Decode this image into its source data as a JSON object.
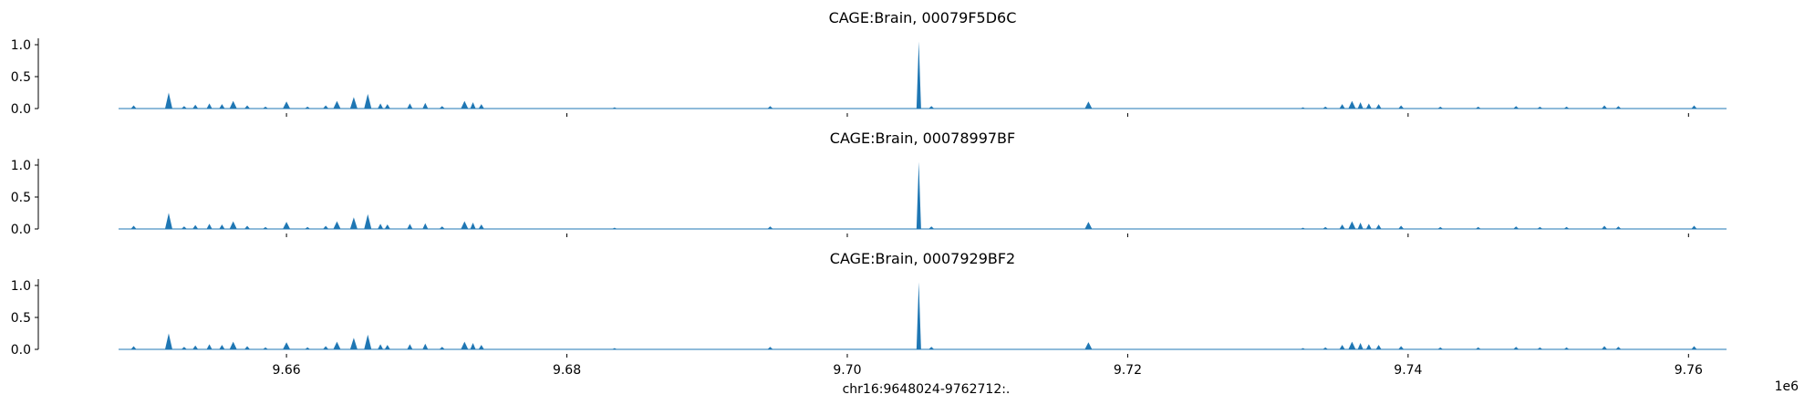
{
  "chart_data": [
    {
      "type": "area",
      "title": "CAGE:Brain, 00079F5D6C",
      "xlabel": "",
      "ylabel": "",
      "ylim": [
        0,
        1.1
      ],
      "yticks": [
        "0.0",
        "0.5",
        "1.0"
      ],
      "xlim": [
        9648024,
        9762712
      ],
      "xticks": [
        9660000,
        9680000,
        9700000,
        9720000,
        9740000,
        9760000
      ],
      "xtick_labels": [],
      "color": "#1f77b4",
      "peaks": [
        {
          "x": 9649100,
          "y": 0.05
        },
        {
          "x": 9651600,
          "y": 0.25
        },
        {
          "x": 9652700,
          "y": 0.04
        },
        {
          "x": 9653500,
          "y": 0.06
        },
        {
          "x": 9654500,
          "y": 0.08
        },
        {
          "x": 9655400,
          "y": 0.07
        },
        {
          "x": 9656200,
          "y": 0.12
        },
        {
          "x": 9657200,
          "y": 0.05
        },
        {
          "x": 9658500,
          "y": 0.03
        },
        {
          "x": 9660000,
          "y": 0.11
        },
        {
          "x": 9661500,
          "y": 0.03
        },
        {
          "x": 9662800,
          "y": 0.05
        },
        {
          "x": 9663600,
          "y": 0.12
        },
        {
          "x": 9664800,
          "y": 0.18
        },
        {
          "x": 9665800,
          "y": 0.23
        },
        {
          "x": 9666700,
          "y": 0.08
        },
        {
          "x": 9667200,
          "y": 0.07
        },
        {
          "x": 9668800,
          "y": 0.08
        },
        {
          "x": 9669900,
          "y": 0.09
        },
        {
          "x": 9671100,
          "y": 0.04
        },
        {
          "x": 9672700,
          "y": 0.12
        },
        {
          "x": 9673300,
          "y": 0.1
        },
        {
          "x": 9673900,
          "y": 0.07
        },
        {
          "x": 9683400,
          "y": 0.02
        },
        {
          "x": 9694500,
          "y": 0.04
        },
        {
          "x": 9705100,
          "y": 1.05
        },
        {
          "x": 9706000,
          "y": 0.04
        },
        {
          "x": 9717200,
          "y": 0.11
        },
        {
          "x": 9732500,
          "y": 0.02
        },
        {
          "x": 9734100,
          "y": 0.03
        },
        {
          "x": 9735300,
          "y": 0.07
        },
        {
          "x": 9736000,
          "y": 0.12
        },
        {
          "x": 9736600,
          "y": 0.1
        },
        {
          "x": 9737200,
          "y": 0.08
        },
        {
          "x": 9737900,
          "y": 0.07
        },
        {
          "x": 9739500,
          "y": 0.05
        },
        {
          "x": 9742300,
          "y": 0.03
        },
        {
          "x": 9745000,
          "y": 0.03
        },
        {
          "x": 9747700,
          "y": 0.04
        },
        {
          "x": 9749400,
          "y": 0.03
        },
        {
          "x": 9751300,
          "y": 0.03
        },
        {
          "x": 9754000,
          "y": 0.05
        },
        {
          "x": 9755000,
          "y": 0.04
        },
        {
          "x": 9760400,
          "y": 0.05
        }
      ]
    },
    {
      "type": "area",
      "title": "CAGE:Brain, 00078997BF",
      "xlabel": "",
      "ylabel": "",
      "ylim": [
        0,
        1.1
      ],
      "yticks": [
        "0.0",
        "0.5",
        "1.0"
      ],
      "xlim": [
        9648024,
        9762712
      ],
      "xticks": [
        9660000,
        9680000,
        9700000,
        9720000,
        9740000,
        9760000
      ],
      "xtick_labels": [],
      "color": "#1f77b4",
      "peaks": [
        {
          "x": 9649100,
          "y": 0.05
        },
        {
          "x": 9651600,
          "y": 0.25
        },
        {
          "x": 9652700,
          "y": 0.04
        },
        {
          "x": 9653500,
          "y": 0.06
        },
        {
          "x": 9654500,
          "y": 0.08
        },
        {
          "x": 9655400,
          "y": 0.07
        },
        {
          "x": 9656200,
          "y": 0.12
        },
        {
          "x": 9657200,
          "y": 0.05
        },
        {
          "x": 9658500,
          "y": 0.03
        },
        {
          "x": 9660000,
          "y": 0.11
        },
        {
          "x": 9661500,
          "y": 0.03
        },
        {
          "x": 9662800,
          "y": 0.05
        },
        {
          "x": 9663600,
          "y": 0.12
        },
        {
          "x": 9664800,
          "y": 0.18
        },
        {
          "x": 9665800,
          "y": 0.23
        },
        {
          "x": 9666700,
          "y": 0.08
        },
        {
          "x": 9667200,
          "y": 0.07
        },
        {
          "x": 9668800,
          "y": 0.08
        },
        {
          "x": 9669900,
          "y": 0.09
        },
        {
          "x": 9671100,
          "y": 0.04
        },
        {
          "x": 9672700,
          "y": 0.12
        },
        {
          "x": 9673300,
          "y": 0.1
        },
        {
          "x": 9673900,
          "y": 0.07
        },
        {
          "x": 9683400,
          "y": 0.02
        },
        {
          "x": 9694500,
          "y": 0.04
        },
        {
          "x": 9705100,
          "y": 1.05
        },
        {
          "x": 9706000,
          "y": 0.04
        },
        {
          "x": 9717200,
          "y": 0.11
        },
        {
          "x": 9732500,
          "y": 0.02
        },
        {
          "x": 9734100,
          "y": 0.03
        },
        {
          "x": 9735300,
          "y": 0.07
        },
        {
          "x": 9736000,
          "y": 0.12
        },
        {
          "x": 9736600,
          "y": 0.1
        },
        {
          "x": 9737200,
          "y": 0.08
        },
        {
          "x": 9737900,
          "y": 0.07
        },
        {
          "x": 9739500,
          "y": 0.05
        },
        {
          "x": 9742300,
          "y": 0.03
        },
        {
          "x": 9745000,
          "y": 0.03
        },
        {
          "x": 9747700,
          "y": 0.04
        },
        {
          "x": 9749400,
          "y": 0.03
        },
        {
          "x": 9751300,
          "y": 0.03
        },
        {
          "x": 9754000,
          "y": 0.05
        },
        {
          "x": 9755000,
          "y": 0.04
        },
        {
          "x": 9760400,
          "y": 0.05
        }
      ]
    },
    {
      "type": "area",
      "title": "CAGE:Brain, 0007929BF2",
      "xlabel": "chr16:9648024-9762712:.",
      "ylabel": "",
      "ylim": [
        0,
        1.1
      ],
      "yticks": [
        "0.0",
        "0.5",
        "1.0"
      ],
      "xlim": [
        9648024,
        9762712
      ],
      "xticks": [
        9660000,
        9680000,
        9700000,
        9720000,
        9740000,
        9760000
      ],
      "xtick_labels": [
        "9.66",
        "9.68",
        "9.70",
        "9.72",
        "9.74",
        "9.76"
      ],
      "x_offset_text": "1e6",
      "color": "#1f77b4",
      "peaks": [
        {
          "x": 9649100,
          "y": 0.05
        },
        {
          "x": 9651600,
          "y": 0.25
        },
        {
          "x": 9652700,
          "y": 0.04
        },
        {
          "x": 9653500,
          "y": 0.06
        },
        {
          "x": 9654500,
          "y": 0.08
        },
        {
          "x": 9655400,
          "y": 0.07
        },
        {
          "x": 9656200,
          "y": 0.12
        },
        {
          "x": 9657200,
          "y": 0.05
        },
        {
          "x": 9658500,
          "y": 0.03
        },
        {
          "x": 9660000,
          "y": 0.11
        },
        {
          "x": 9661500,
          "y": 0.03
        },
        {
          "x": 9662800,
          "y": 0.05
        },
        {
          "x": 9663600,
          "y": 0.12
        },
        {
          "x": 9664800,
          "y": 0.18
        },
        {
          "x": 9665800,
          "y": 0.23
        },
        {
          "x": 9666700,
          "y": 0.08
        },
        {
          "x": 9667200,
          "y": 0.07
        },
        {
          "x": 9668800,
          "y": 0.08
        },
        {
          "x": 9669900,
          "y": 0.09
        },
        {
          "x": 9671100,
          "y": 0.04
        },
        {
          "x": 9672700,
          "y": 0.12
        },
        {
          "x": 9673300,
          "y": 0.1
        },
        {
          "x": 9673900,
          "y": 0.07
        },
        {
          "x": 9683400,
          "y": 0.02
        },
        {
          "x": 9694500,
          "y": 0.04
        },
        {
          "x": 9705100,
          "y": 1.05
        },
        {
          "x": 9706000,
          "y": 0.04
        },
        {
          "x": 9717200,
          "y": 0.11
        },
        {
          "x": 9732500,
          "y": 0.02
        },
        {
          "x": 9734100,
          "y": 0.03
        },
        {
          "x": 9735300,
          "y": 0.07
        },
        {
          "x": 9736000,
          "y": 0.12
        },
        {
          "x": 9736600,
          "y": 0.1
        },
        {
          "x": 9737200,
          "y": 0.08
        },
        {
          "x": 9737900,
          "y": 0.07
        },
        {
          "x": 9739500,
          "y": 0.05
        },
        {
          "x": 9742300,
          "y": 0.03
        },
        {
          "x": 9745000,
          "y": 0.03
        },
        {
          "x": 9747700,
          "y": 0.04
        },
        {
          "x": 9749400,
          "y": 0.03
        },
        {
          "x": 9751300,
          "y": 0.03
        },
        {
          "x": 9754000,
          "y": 0.05
        },
        {
          "x": 9755000,
          "y": 0.04
        },
        {
          "x": 9760400,
          "y": 0.05
        }
      ]
    }
  ]
}
